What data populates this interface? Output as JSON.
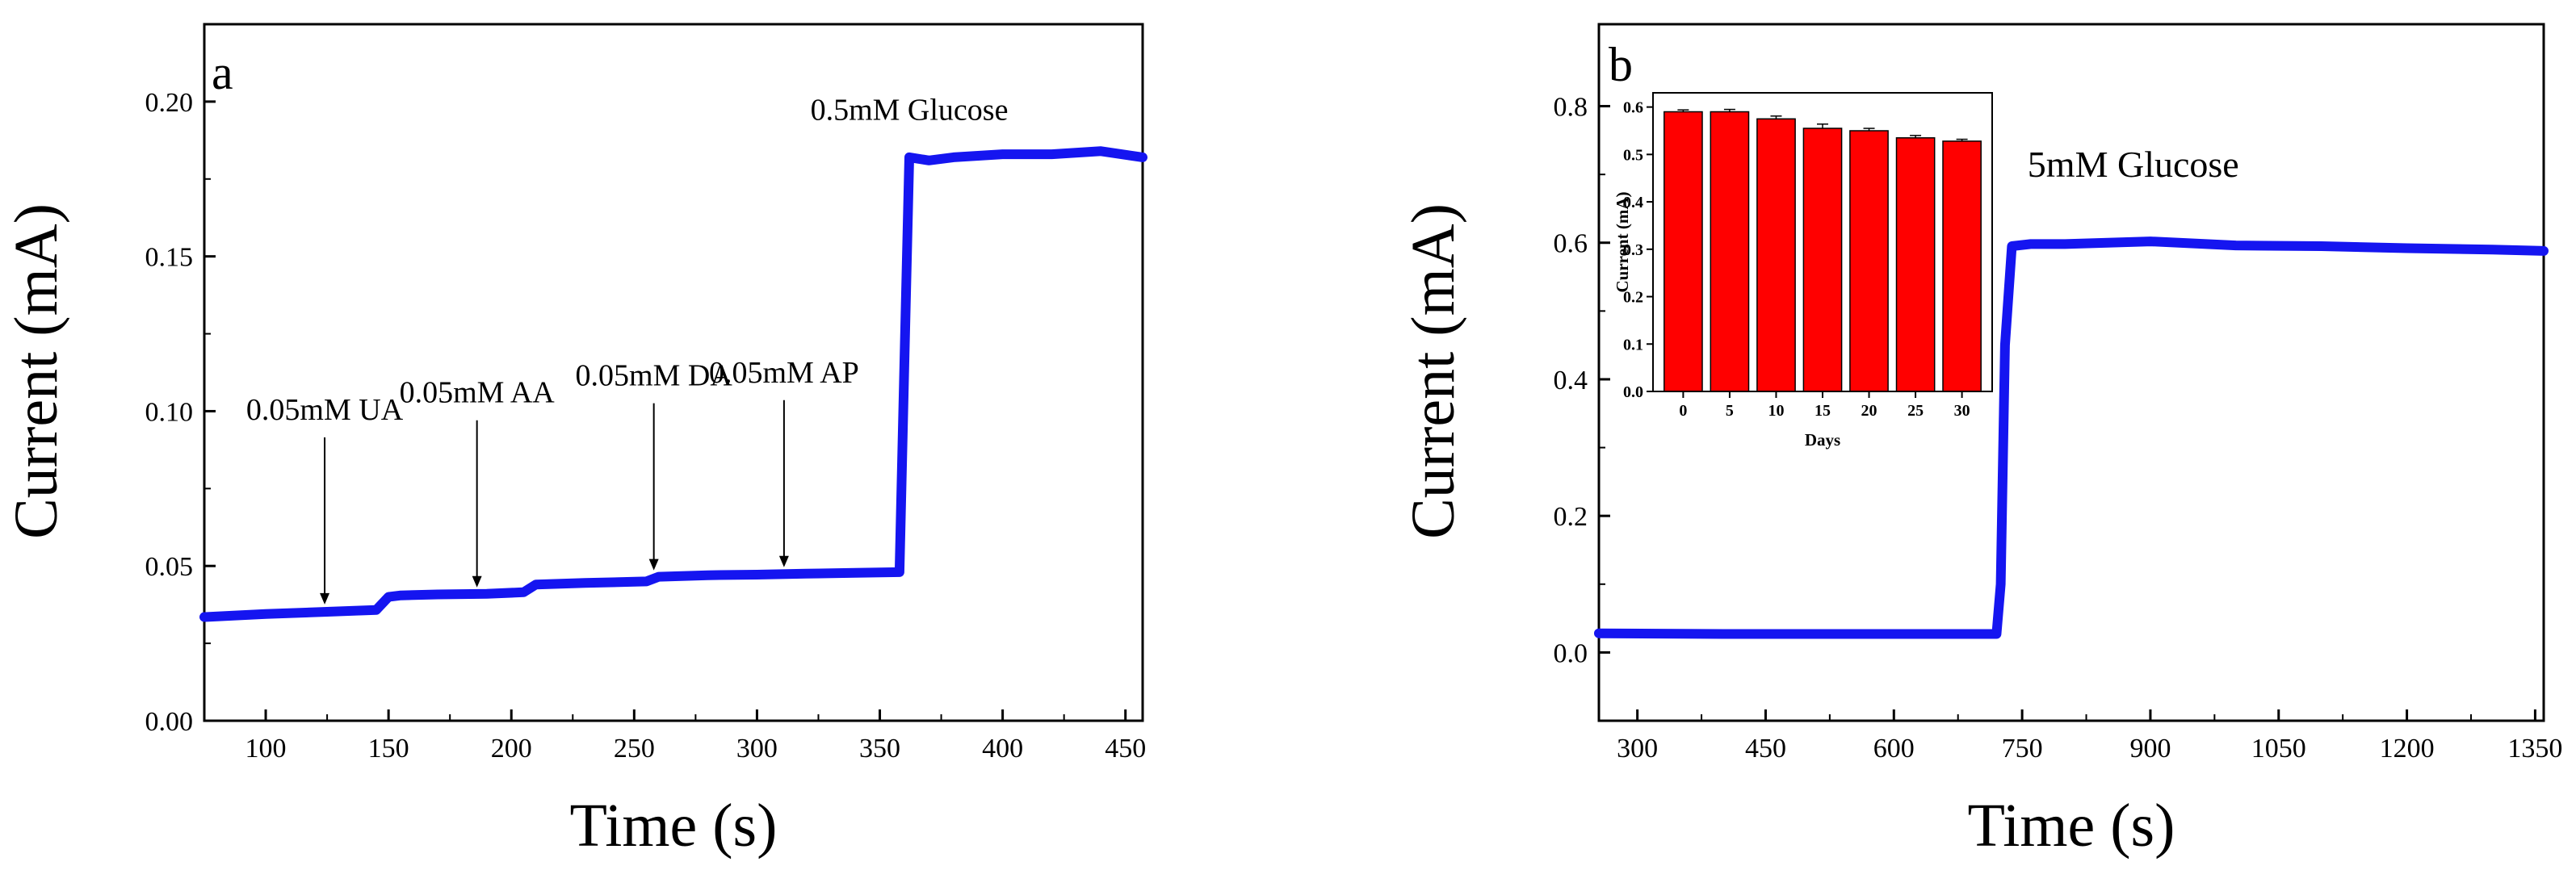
{
  "figure": {
    "panels": [
      "a",
      "b"
    ]
  },
  "chart_data": [
    {
      "id": "a",
      "type": "line",
      "panel_label": "a",
      "title": "",
      "xlabel": "Time (s)",
      "ylabel": "Current (mA)",
      "xlim": [
        75,
        457
      ],
      "ylim": [
        0.0,
        0.225
      ],
      "xticks": [
        100,
        150,
        200,
        250,
        300,
        350,
        400,
        450
      ],
      "yticks": [
        0.0,
        0.05,
        0.1,
        0.15,
        0.2
      ],
      "ytick_decimals": 2,
      "line_color": "#1515f0",
      "series": [
        {
          "name": "current",
          "x": [
            75,
            100,
            125,
            145,
            150,
            155,
            170,
            190,
            205,
            210,
            230,
            255,
            260,
            280,
            300,
            320,
            340,
            358,
            360,
            362,
            370,
            380,
            400,
            420,
            440,
            457
          ],
          "y": [
            0.0335,
            0.0345,
            0.0352,
            0.0358,
            0.04,
            0.0405,
            0.0408,
            0.041,
            0.0415,
            0.044,
            0.0445,
            0.045,
            0.0465,
            0.047,
            0.0472,
            0.0475,
            0.0478,
            0.048,
            0.115,
            0.182,
            0.181,
            0.182,
            0.183,
            0.183,
            0.184,
            0.182
          ]
        }
      ],
      "annotations": [
        {
          "text": "0.05mM UA",
          "x": 124,
          "y": 0.0355,
          "arrow": true
        },
        {
          "text": "0.05mM AA",
          "x": 186,
          "y": 0.041,
          "arrow": true
        },
        {
          "text": "0.05mM DA",
          "x": 258,
          "y": 0.0465,
          "arrow": true
        },
        {
          "text": "0.05mM AP",
          "x": 311,
          "y": 0.0475,
          "arrow": true
        },
        {
          "text": "0.5mM Glucose",
          "x": 362,
          "y": 0.185,
          "arrow": false
        }
      ]
    },
    {
      "id": "b",
      "type": "line",
      "panel_label": "b",
      "title": "",
      "xlabel": "Time (s)",
      "ylabel": "Current (mA)",
      "xlim": [
        255,
        1360
      ],
      "ylim": [
        -0.1,
        0.92
      ],
      "xticks": [
        300,
        450,
        600,
        750,
        900,
        1050,
        1200,
        1350
      ],
      "yticks": [
        0.0,
        0.2,
        0.4,
        0.6,
        0.8
      ],
      "ytick_decimals": 1,
      "line_color": "#1515f0",
      "series": [
        {
          "name": "current",
          "x": [
            255,
            400,
            550,
            700,
            720,
            725,
            730,
            738,
            760,
            800,
            900,
            1000,
            1100,
            1200,
            1300,
            1360
          ],
          "y": [
            0.028,
            0.027,
            0.027,
            0.027,
            0.027,
            0.1,
            0.45,
            0.595,
            0.598,
            0.598,
            0.602,
            0.596,
            0.595,
            0.592,
            0.59,
            0.588
          ]
        }
      ],
      "annotations": [
        {
          "text": "5mM Glucose",
          "x": 880,
          "y": 0.655,
          "arrow": false
        }
      ],
      "inset": {
        "type": "bar",
        "xlabel": "Days",
        "ylabel": "Current (mA)",
        "categories": [
          "0",
          "5",
          "10",
          "15",
          "20",
          "25",
          "30"
        ],
        "values": [
          0.59,
          0.59,
          0.575,
          0.555,
          0.55,
          0.535,
          0.528
        ],
        "errors": [
          0.004,
          0.005,
          0.006,
          0.009,
          0.005,
          0.005,
          0.004
        ],
        "ylim": [
          0.0,
          0.63
        ],
        "yticks": [
          0.0,
          0.1,
          0.2,
          0.3,
          0.4,
          0.5,
          0.6
        ],
        "ytick_decimals": 1,
        "bar_color": "#ff0000"
      }
    }
  ]
}
